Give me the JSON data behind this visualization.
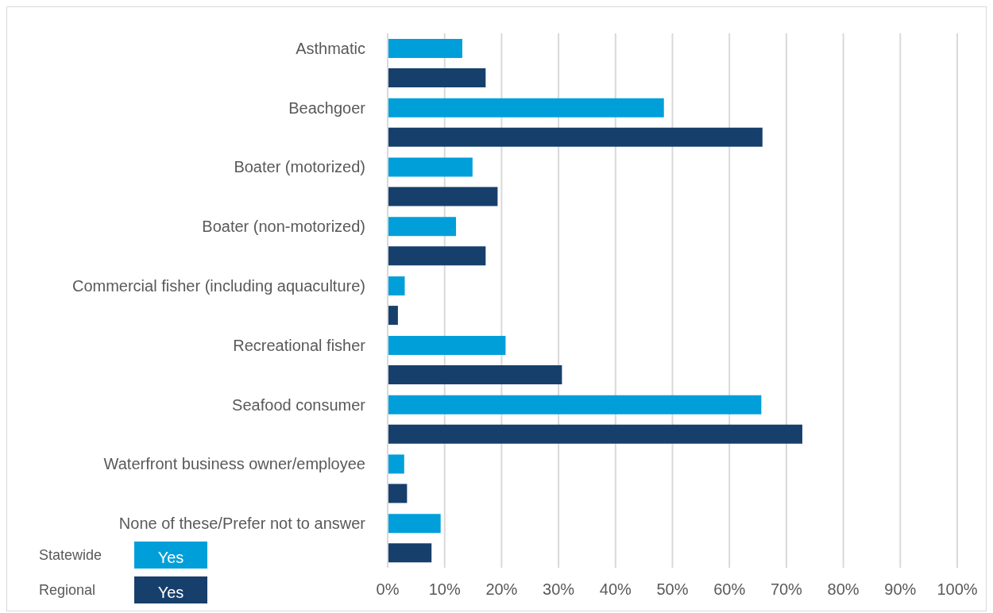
{
  "chart_data": {
    "type": "bar",
    "orientation": "horizontal",
    "categories": [
      "Asthmatic",
      "Beachgoer",
      "Boater (motorized)",
      "Boater (non-motorized)",
      "Commercial fisher (including aquaculture)",
      "Recreational fisher",
      "Seafood consumer",
      "Waterfront business owner/employee",
      "None of these/Prefer not to answer"
    ],
    "series": [
      {
        "name": "Yes",
        "color": "#009fda",
        "values": [
          13.1,
          48.5,
          14.9,
          12.0,
          3.0,
          20.7,
          65.6,
          2.9,
          9.3
        ]
      },
      {
        "name": "Yes",
        "color": "#173f6b",
        "values": [
          17.2,
          65.8,
          19.3,
          17.2,
          1.8,
          30.6,
          72.8,
          3.4,
          7.7
        ]
      }
    ],
    "xlim": [
      0,
      100
    ],
    "xticks": [
      {
        "value": 0,
        "label": "0%"
      },
      {
        "value": 10,
        "label": "10%"
      },
      {
        "value": 20,
        "label": "20%"
      },
      {
        "value": 30,
        "label": "30%"
      },
      {
        "value": 40,
        "label": "40%"
      },
      {
        "value": 50,
        "label": "50%"
      },
      {
        "value": 60,
        "label": "60%"
      },
      {
        "value": 70,
        "label": "70%"
      },
      {
        "value": 80,
        "label": "80%"
      },
      {
        "value": 90,
        "label": "90%"
      },
      {
        "value": 100,
        "label": "100%"
      }
    ],
    "grid": "x",
    "legend": "bottom left",
    "annotations": [
      "Statewide",
      "Regional"
    ]
  }
}
